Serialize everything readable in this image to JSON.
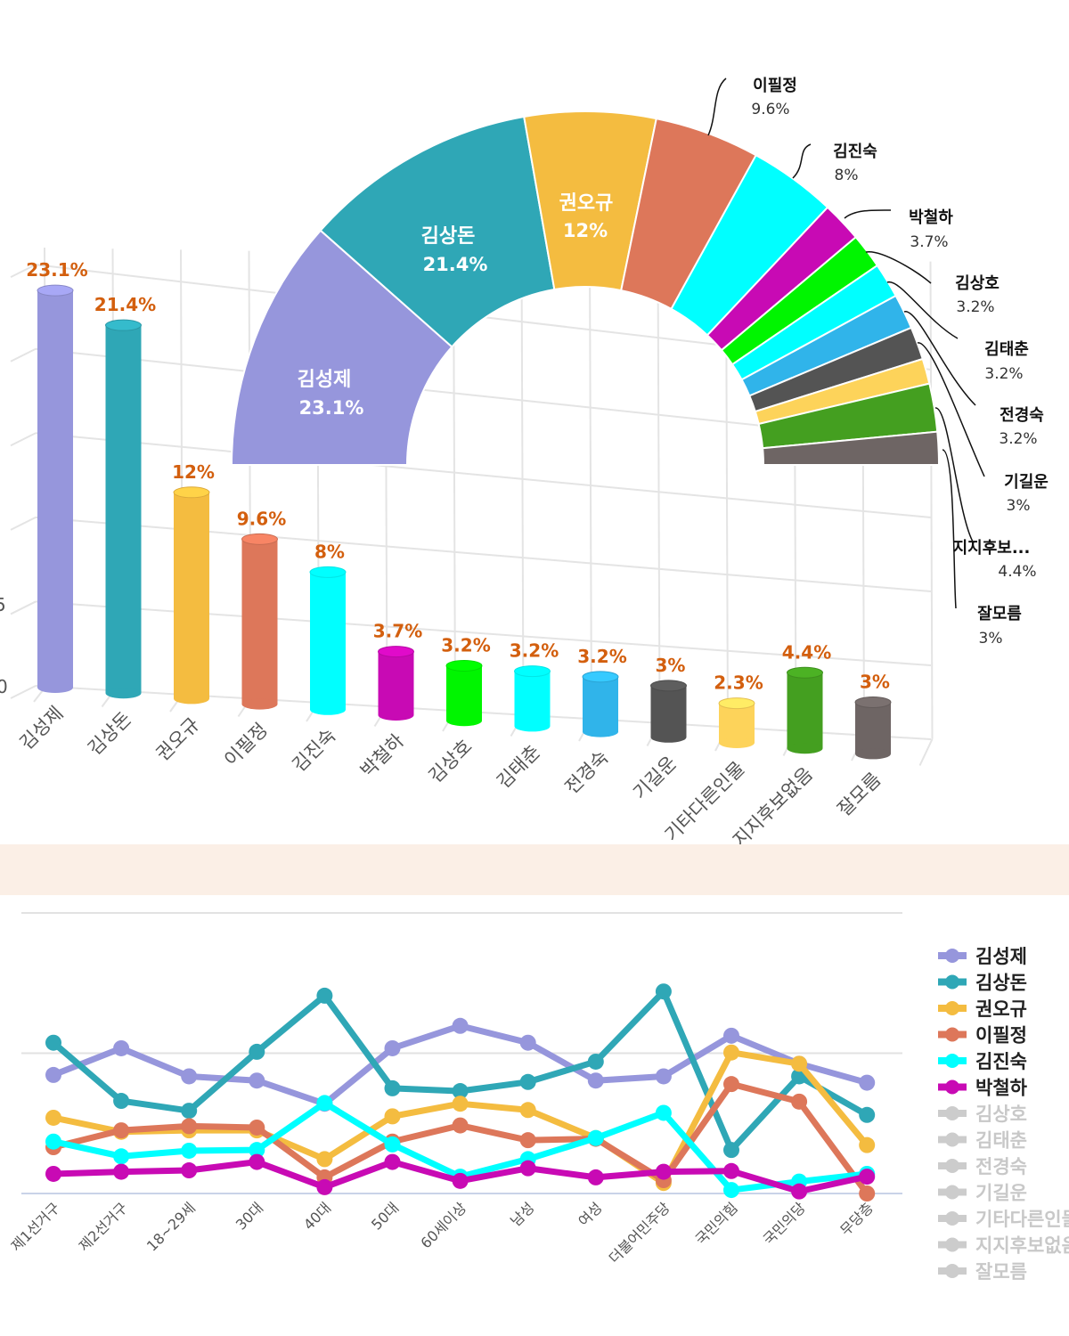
{
  "chart_data": [
    {
      "type": "bar",
      "title": "",
      "style": "3d-cylinder",
      "categories": [
        "김성제",
        "김상돈",
        "권오규",
        "이필정",
        "김진숙",
        "박철하",
        "김상호",
        "김태춘",
        "전경숙",
        "기길운",
        "기타다른인물",
        "지지후보없음",
        "잘모름"
      ],
      "values": [
        23.1,
        21.4,
        12,
        9.6,
        8,
        3.7,
        3.2,
        3.2,
        3.2,
        3,
        2.3,
        4.4,
        3
      ],
      "value_labels": [
        "23.1%",
        "21.4%",
        "12%",
        "9.6%",
        "8%",
        "3.7%",
        "3.2%",
        "3.2%",
        "3.2%",
        "3%",
        "2.3%",
        "4.4%",
        "3%"
      ],
      "colors": [
        "#9696dc",
        "#2fa7b6",
        "#f4bc40",
        "#dd775a",
        "#00ffff",
        "#c80ab4",
        "#00f500",
        "#00ffff",
        "#30b4ea",
        "#545454",
        "#fdd35a",
        "#449f20",
        "#6e6564"
      ],
      "ytick_labels_visible": [
        "5",
        "0"
      ],
      "ylim": [
        0,
        25
      ],
      "grid": true,
      "xlabel": "",
      "ylabel": ""
    },
    {
      "type": "pie",
      "style": "half-donut",
      "labels": [
        "김성제",
        "김상돈",
        "권오규",
        "이필정",
        "김진숙",
        "박철하",
        "김상호",
        "김태춘",
        "전경숙",
        "기길운",
        "기타다른인물",
        "지지후보없음",
        "잘모름"
      ],
      "values": [
        23.1,
        21.4,
        12,
        9.6,
        8,
        3.7,
        3.2,
        3.2,
        3.2,
        3,
        2.3,
        4.4,
        3
      ],
      "inside_labels": [
        {
          "name": "김성제",
          "value": "23.1%"
        },
        {
          "name": "김상돈",
          "value": "21.4%"
        },
        {
          "name": "권오규",
          "value": "12%"
        }
      ],
      "outside_labels": [
        {
          "name": "이필정",
          "value": "9.6%"
        },
        {
          "name": "김진숙",
          "value": "8%"
        },
        {
          "name": "박철하",
          "value": "3.7%"
        },
        {
          "name": "김상호",
          "value": "3.2%"
        },
        {
          "name": "김태춘",
          "value": "3.2%"
        },
        {
          "name": "전경숙",
          "value": "3.2%"
        },
        {
          "name": "기길운",
          "value": "3%"
        },
        {
          "name": "지지후보...",
          "value": "4.4%"
        },
        {
          "name": "잘모름",
          "value": "3%"
        }
      ],
      "colors": [
        "#9696dc",
        "#2fa7b6",
        "#f4bc40",
        "#dd775a",
        "#00ffff",
        "#c80ab4",
        "#00f500",
        "#00ffff",
        "#30b4ea",
        "#545454",
        "#fdd35a",
        "#449f20",
        "#6e6564"
      ]
    },
    {
      "type": "line",
      "title": "",
      "x": [
        "제1선거구",
        "제2선거구",
        "18~29세",
        "30대",
        "40대",
        "50대",
        "60세이상",
        "남성",
        "여성",
        "더불어민주당",
        "국민의힘",
        "국민의당",
        "무당층"
      ],
      "ylim": [
        0,
        40
      ],
      "grid": true,
      "legend_position": "right",
      "series": [
        {
          "name": "김성제",
          "color": "#9696dc",
          "visible": true,
          "values": [
            16.9,
            20.7,
            16.7,
            16.1,
            12.8,
            20.7,
            23.9,
            21.5,
            16.1,
            16.7,
            22.5,
            18.5,
            15.8
          ]
        },
        {
          "name": "김상돈",
          "color": "#2fa7b6",
          "visible": true,
          "values": [
            21.5,
            13.2,
            11.8,
            20.2,
            28.2,
            15.0,
            14.6,
            15.9,
            18.8,
            28.8,
            6.2,
            16.7,
            11.2
          ]
        },
        {
          "name": "권오규",
          "color": "#f4bc40",
          "visible": true,
          "values": [
            10.8,
            8.8,
            9.0,
            9.0,
            4.9,
            11.0,
            12.8,
            11.9,
            7.9,
            1.5,
            20.1,
            18.5,
            6.9
          ]
        },
        {
          "name": "이필정",
          "color": "#dd775a",
          "visible": true,
          "values": [
            6.6,
            9.0,
            9.6,
            9.4,
            2.3,
            7.4,
            9.7,
            7.6,
            7.8,
            1.9,
            15.6,
            13.1,
            0.0
          ]
        },
        {
          "name": "김진숙",
          "color": "#00ffff",
          "visible": true,
          "values": [
            7.4,
            5.3,
            6.1,
            6.2,
            12.9,
            7.0,
            2.4,
            4.9,
            7.9,
            11.5,
            0.5,
            1.7,
            2.8
          ]
        },
        {
          "name": "박철하",
          "color": "#c80ab4",
          "visible": true,
          "values": [
            2.8,
            3.1,
            3.3,
            4.5,
            0.9,
            4.5,
            1.8,
            3.6,
            2.3,
            3.1,
            3.2,
            0.3,
            2.4
          ]
        },
        {
          "name": "김상호",
          "color": "#cccccc",
          "visible": false,
          "values": []
        },
        {
          "name": "김태춘",
          "color": "#cccccc",
          "visible": false,
          "values": []
        },
        {
          "name": "전경숙",
          "color": "#cccccc",
          "visible": false,
          "values": []
        },
        {
          "name": "기길운",
          "color": "#cccccc",
          "visible": false,
          "values": []
        },
        {
          "name": "기타다른인물",
          "color": "#cccccc",
          "visible": false,
          "values": []
        },
        {
          "name": "지지후보없음",
          "color": "#cccccc",
          "visible": false,
          "values": []
        },
        {
          "name": "잘모름",
          "color": "#cccccc",
          "visible": false,
          "values": []
        }
      ]
    }
  ]
}
